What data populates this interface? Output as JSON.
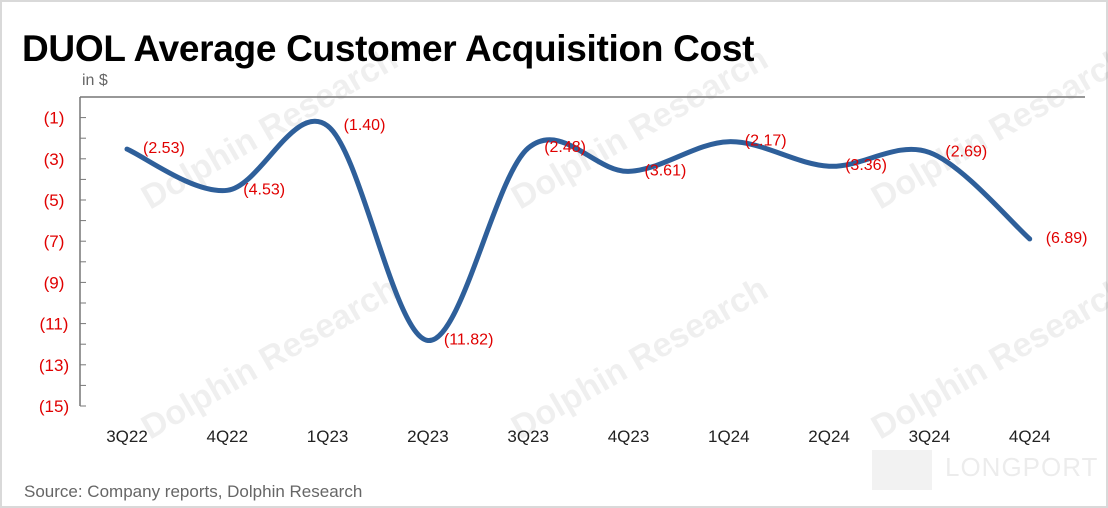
{
  "title": "DUOL Average Customer Acquisition Cost",
  "unit_label": "in $",
  "source": "Source: Company reports, Dolphin Research",
  "watermark": "Dolphin Research 海豚投研",
  "logo_text": "LONGPORT",
  "colors": {
    "line": "#2e5f9a",
    "labels": "#e00000"
  },
  "chart_data": {
    "type": "line",
    "title": "DUOL Average Customer Acquisition Cost",
    "ylabel": "in $",
    "xlabel": "",
    "categories": [
      "3Q22",
      "4Q22",
      "1Q23",
      "2Q23",
      "3Q23",
      "4Q23",
      "1Q24",
      "2Q24",
      "3Q24",
      "4Q24"
    ],
    "values": [
      -2.53,
      -4.53,
      -1.4,
      -11.82,
      -2.48,
      -3.61,
      -2.17,
      -3.36,
      -2.69,
      -6.89
    ],
    "data_labels": [
      "(2.53)",
      "(4.53)",
      "(1.40)",
      "(11.82)",
      "(2.48)",
      "(3.61)",
      "(2.17)",
      "(3.36)",
      "(2.69)",
      "(6.89)"
    ],
    "ylim": [
      -15,
      0
    ],
    "yticks": [
      -1,
      -3,
      -5,
      -7,
      -9,
      -11,
      -13,
      -15
    ],
    "ytick_labels": [
      "(1)",
      "(3)",
      "(5)",
      "(7)",
      "(9)",
      "(11)",
      "(13)",
      "(15)"
    ],
    "grid": false,
    "legend": "none"
  }
}
